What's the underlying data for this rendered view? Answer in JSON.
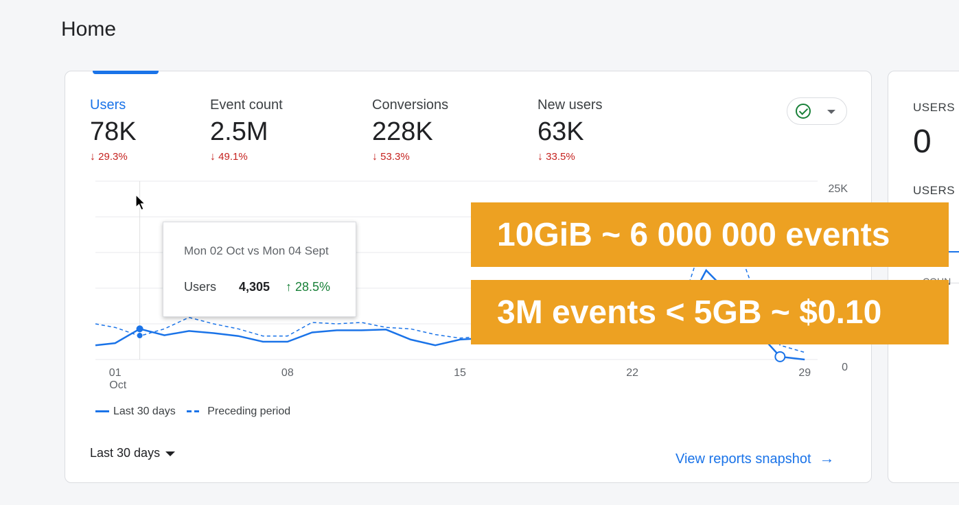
{
  "page": {
    "title": "Home"
  },
  "metrics": [
    {
      "label": "Users",
      "value": "78K",
      "change": "29.3%",
      "direction": "down",
      "active": true
    },
    {
      "label": "Event count",
      "value": "2.5M",
      "change": "49.1%",
      "direction": "down",
      "active": false
    },
    {
      "label": "Conversions",
      "value": "228K",
      "change": "53.3%",
      "direction": "down",
      "active": false
    },
    {
      "label": "New users",
      "value": "63K",
      "change": "33.5%",
      "direction": "down",
      "active": false
    }
  ],
  "chart_data": {
    "type": "line",
    "x_ticks": [
      {
        "day": 1,
        "label": "01",
        "sublabel": "Oct"
      },
      {
        "day": 8,
        "label": "08"
      },
      {
        "day": 15,
        "label": "15"
      },
      {
        "day": 22,
        "label": "22"
      },
      {
        "day": 29,
        "label": "29"
      }
    ],
    "y_ticks": [
      {
        "value": 25000,
        "label": "25K"
      },
      {
        "value": 0,
        "label": "0"
      }
    ],
    "ylim": [
      0,
      25000
    ],
    "xlim": [
      0.2,
      29.3
    ],
    "series": [
      {
        "name": "Last 30 days",
        "style": "solid",
        "x": [
          0.2,
          1,
          2,
          3,
          4,
          5,
          6,
          7,
          8,
          9,
          10,
          11,
          12,
          13,
          14,
          15,
          16,
          17,
          18,
          19,
          20,
          21,
          22,
          23,
          24,
          25,
          26,
          27,
          28,
          29
        ],
        "y": [
          2000,
          2300,
          4300,
          3400,
          4000,
          3700,
          3300,
          2500,
          2500,
          3800,
          4100,
          4100,
          4200,
          2800,
          2000,
          2800,
          3000,
          3300,
          3600,
          3300,
          3000,
          3500,
          3700,
          3000,
          6000,
          12500,
          9000,
          4200,
          400,
          0
        ]
      },
      {
        "name": "Preceding period",
        "style": "dashed",
        "x": [
          0.2,
          1,
          2,
          3,
          4,
          5,
          6,
          7,
          8,
          9,
          10,
          11,
          12,
          13,
          14,
          15,
          16,
          17,
          18,
          19,
          20,
          21,
          22,
          23,
          24,
          25,
          26,
          27,
          28,
          29
        ],
        "y": [
          5000,
          4500,
          3300,
          4300,
          5900,
          5000,
          4300,
          3300,
          3300,
          5200,
          5000,
          5200,
          4500,
          4300,
          3500,
          3000,
          3300,
          3800,
          3900,
          3600,
          3700,
          4200,
          4600,
          5000,
          7500,
          18000,
          18500,
          9000,
          2000,
          1000
        ]
      }
    ],
    "highlight": {
      "day": 2,
      "value": 4305,
      "preceding": 3360
    },
    "end_marker": {
      "day": 28,
      "value": 400
    },
    "legend_placement": "bottom-left",
    "grid": true
  },
  "tooltip": {
    "title": "Mon 02 Oct vs Mon 04 Sept",
    "metric": "Users",
    "value": "4,305",
    "change": "28.5%"
  },
  "legend": {
    "current": "Last 30 days",
    "previous": "Preceding period"
  },
  "date_range": {
    "label": "Last 30 days"
  },
  "view_link": {
    "label": "View reports snapshot"
  },
  "side_card": {
    "label1": "USERS I",
    "value": "0",
    "label2": "USERS I",
    "label3": "COUN"
  },
  "overlays": [
    "10GiB ~ 6 000 000 events",
    "3M events < 5GB ~ $0.10"
  ],
  "colors": {
    "accent": "#1a73e8",
    "negative": "#c5221f",
    "positive": "#188038",
    "banner": "#eda122"
  }
}
